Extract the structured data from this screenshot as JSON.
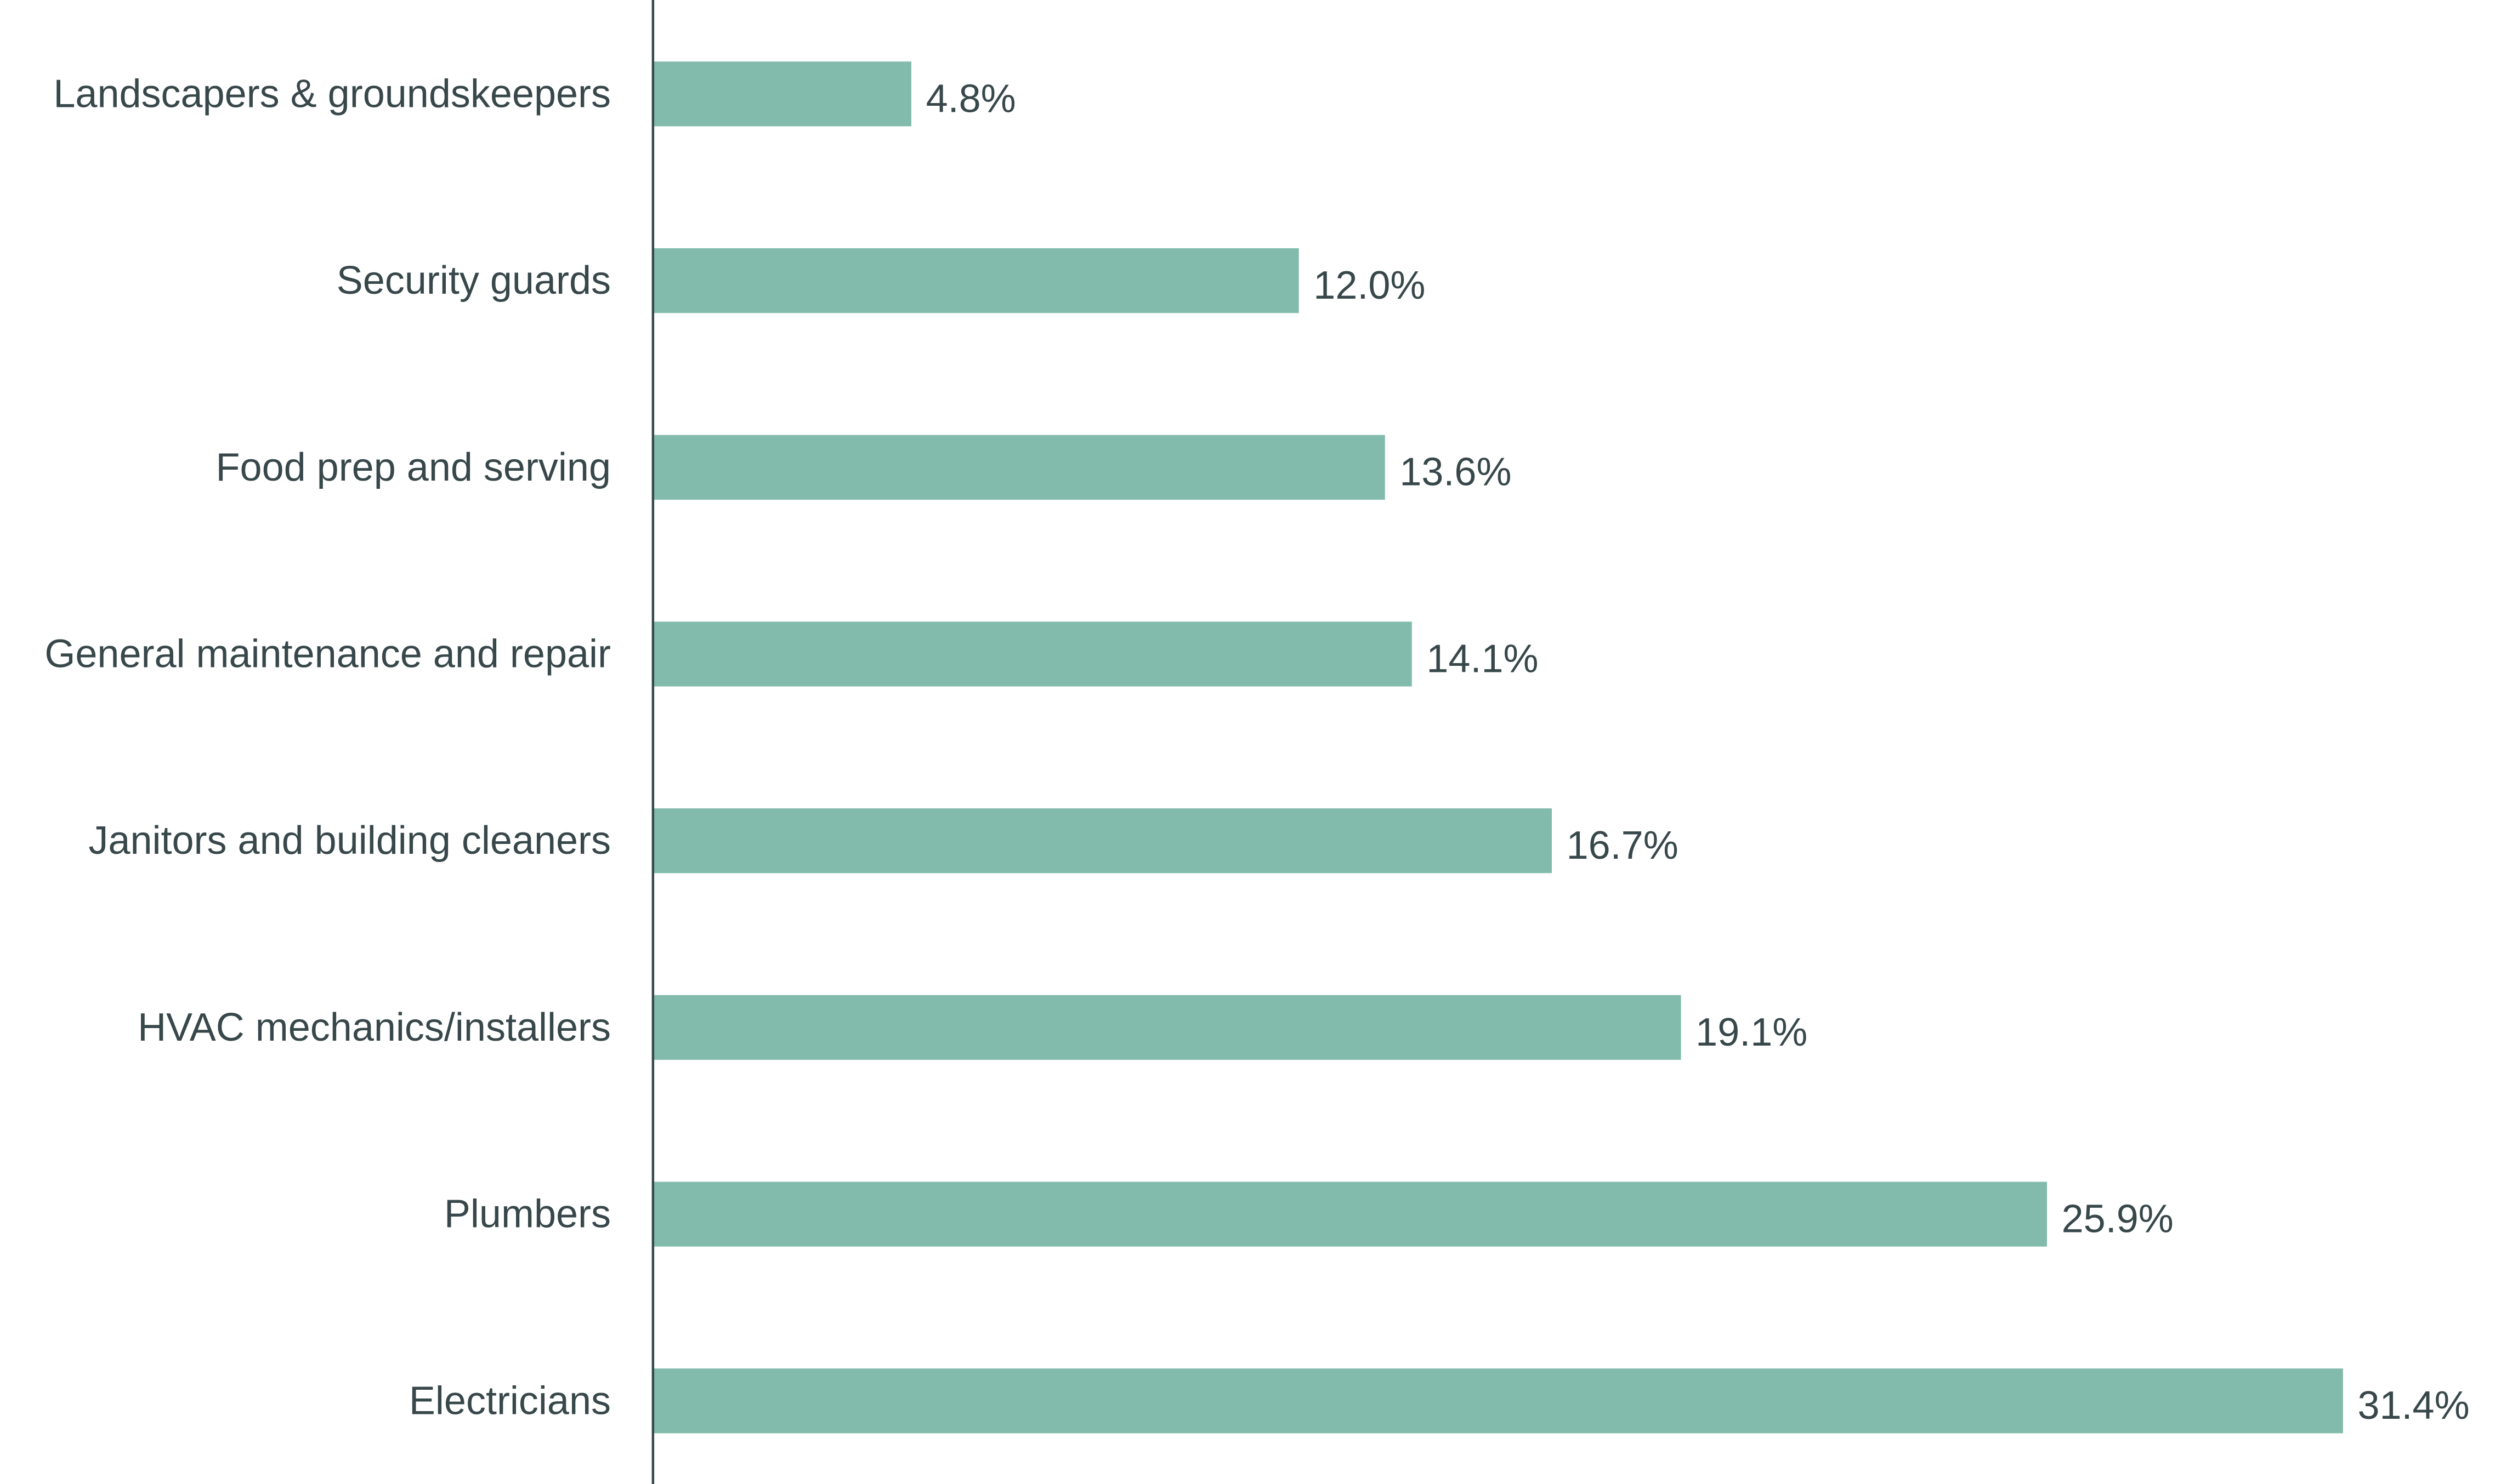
{
  "chart_data": {
    "type": "bar",
    "orientation": "horizontal",
    "title": "",
    "xlabel": "",
    "ylabel": "",
    "grid": false,
    "xlim": [
      0,
      31.4
    ],
    "categories": [
      "Landscapers & groundskeepers",
      "Security guards",
      "Food prep and serving",
      "General maintenance and repair",
      "Janitors and building cleaners",
      "HVAC mechanics/installers",
      "Plumbers",
      "Electricians"
    ],
    "values": [
      4.8,
      12.0,
      13.6,
      14.1,
      16.7,
      19.1,
      25.9,
      31.4
    ],
    "value_labels": [
      "4.8%",
      "12.0%",
      "13.6%",
      "14.1%",
      "16.7%",
      "19.1%",
      "25.9%",
      "31.4%"
    ],
    "colors": {
      "bar": "#82bbab",
      "axis": "#37474a",
      "text": "#37474a"
    }
  }
}
